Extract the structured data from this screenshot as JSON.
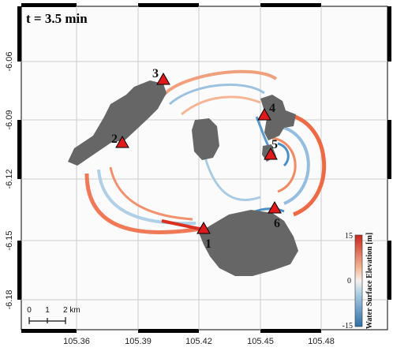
{
  "time_label": "t = 3.5 min",
  "x_ticks": [
    "105.36",
    "105.39",
    "105.42",
    "105.45",
    "105.48"
  ],
  "y_ticks": [
    "-6.06",
    "-6.09",
    "-6.12",
    "-6.15",
    "-6.18"
  ],
  "stations": [
    {
      "id": "1",
      "label": "1"
    },
    {
      "id": "2",
      "label": "2"
    },
    {
      "id": "3",
      "label": "3"
    },
    {
      "id": "4",
      "label": "4"
    },
    {
      "id": "5",
      "label": "5"
    },
    {
      "id": "6",
      "label": "6"
    }
  ],
  "scale_bar": {
    "labels": [
      "0",
      "1",
      "2 km"
    ]
  },
  "colorbar": {
    "title": "Water Surface Elevation [m]",
    "max_label": "15",
    "mid_label": "0",
    "min_label": "-15",
    "colors": {
      "high": "#c8281e",
      "mid": "#f4f1ee",
      "low": "#2e6fa8"
    }
  },
  "colors": {
    "land": "#666666",
    "marker": "#e01a1a",
    "grid": "#cccccc",
    "frame": "#000000"
  }
}
